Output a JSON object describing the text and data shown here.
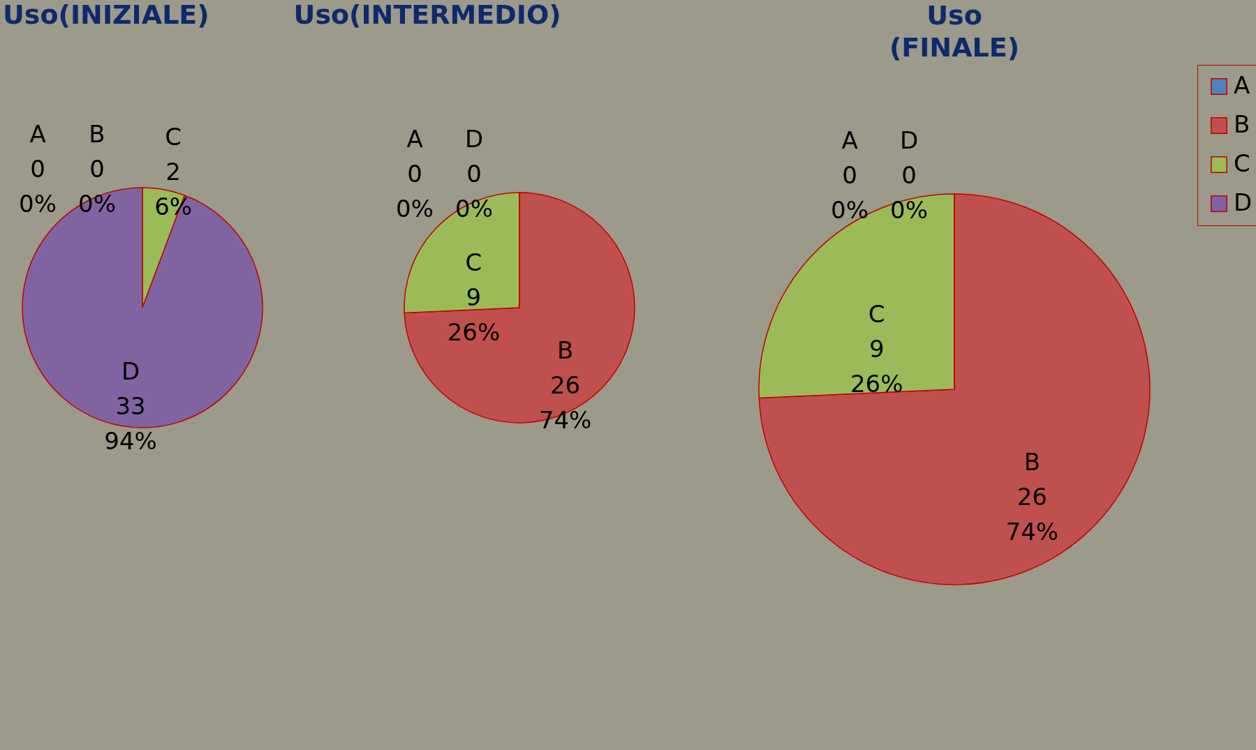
{
  "chart_data": [
    {
      "type": "pie",
      "title": "Uso(INIZIALE)",
      "categories": [
        "A",
        "B",
        "C",
        "D"
      ],
      "values": [
        0,
        0,
        2,
        33
      ],
      "colors": [
        "#4f81bd",
        "#c0504d",
        "#9bbb59",
        "#8064a2"
      ],
      "value_labels": [
        "0\n0%",
        "0\n0%",
        "2\n6%",
        "33\n94%"
      ],
      "legend": false
    },
    {
      "type": "pie",
      "title": "Uso(INTERMEDIO)",
      "categories": [
        "A",
        "B",
        "C",
        "D"
      ],
      "values": [
        0,
        26,
        9,
        0
      ],
      "colors": [
        "#4f81bd",
        "#c0504d",
        "#9bbb59",
        "#8064a2"
      ],
      "value_labels": [
        "0\n0%",
        "26\n74%",
        "9\n26%",
        "0\n0%"
      ],
      "legend": false
    },
    {
      "type": "pie",
      "title": "Uso\n(FINALE)",
      "categories": [
        "A",
        "B",
        "C",
        "D"
      ],
      "values": [
        0,
        26,
        9,
        0
      ],
      "colors": [
        "#4f81bd",
        "#c0504d",
        "#9bbb59",
        "#8064a2"
      ],
      "value_labels": [
        "0\n0%",
        "26\n74%",
        "9\n26%",
        "0\n0%"
      ],
      "legend": "right"
    }
  ]
}
